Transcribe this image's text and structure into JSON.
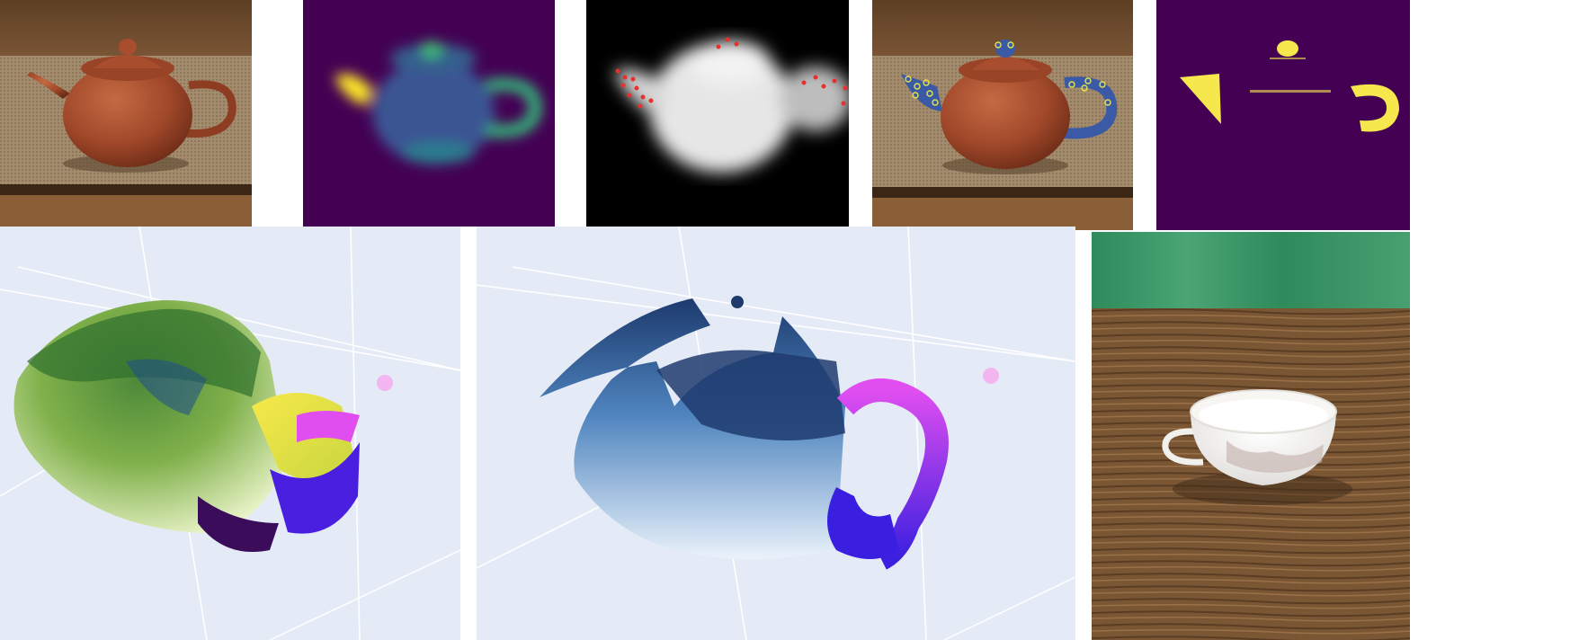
{
  "figure": {
    "panels": [
      {
        "id": "teapot-photo",
        "kind": "photo"
      },
      {
        "id": "similarity-heatmap",
        "kind": "heatmap",
        "colormap": "viridis"
      },
      {
        "id": "depth-map",
        "kind": "grayscale-with-points",
        "point_color": "#e8312a"
      },
      {
        "id": "teapot-part-overlay",
        "kind": "photo-overlay",
        "overlay_color": "#3b5aa6",
        "marker_color": "#e6e34a"
      },
      {
        "id": "binary-mask",
        "kind": "mask",
        "fg": "#f5e74c",
        "bg": "#440154"
      },
      {
        "id": "point-cloud-surface",
        "kind": "3d-scatter",
        "bg": "#e5ebf6"
      },
      {
        "id": "point-cloud-parts",
        "kind": "3d-scatter",
        "bg": "#e5ebf6"
      },
      {
        "id": "teacup-photo",
        "kind": "photo"
      }
    ],
    "colors": {
      "wood": "#6b4a2e",
      "mat": "#a08a6a",
      "clay": "#a0482a",
      "viridis_dark": "#440154",
      "viridis_mid": "#31688e",
      "viridis_teal": "#35b779",
      "viridis_yellow": "#fde725",
      "plotly_bg": "#e5ebf6",
      "navy": "#1f3b6e",
      "magenta": "#e04ef0",
      "violet": "#4a1fe0",
      "green_curtain": "#3f9a6a"
    }
  }
}
